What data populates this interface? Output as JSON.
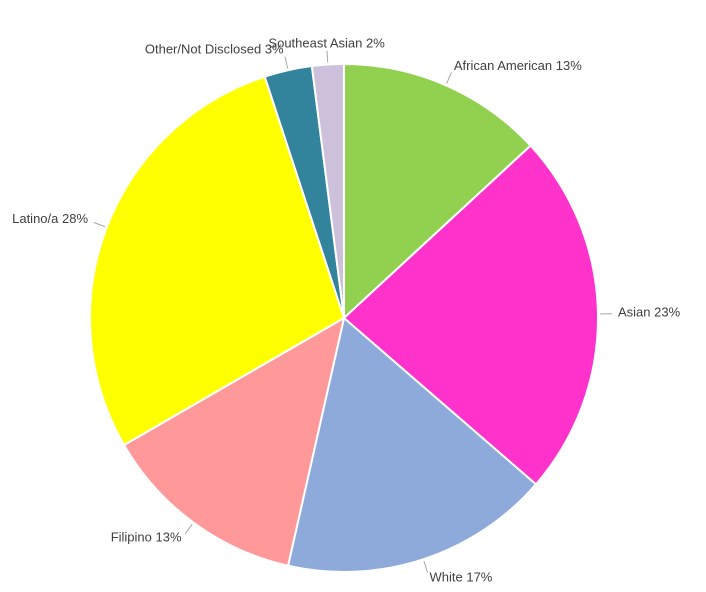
{
  "chart_data": {
    "type": "pie",
    "categories": [
      "African American",
      "Asian",
      "White",
      "Filipino",
      "Latino/a",
      "Other/Not Disclosed",
      "Southeast Asian"
    ],
    "values": [
      13,
      23,
      17,
      13,
      28,
      3,
      2
    ],
    "value_labels": [
      "13%",
      "23%",
      "17%",
      "13%",
      "28%",
      "3%",
      "2%"
    ],
    "colors": [
      "#92d050",
      "#ff33cc",
      "#8eaadb",
      "#ff9999",
      "#ffff00",
      "#31849b",
      "#ccc0da"
    ]
  }
}
